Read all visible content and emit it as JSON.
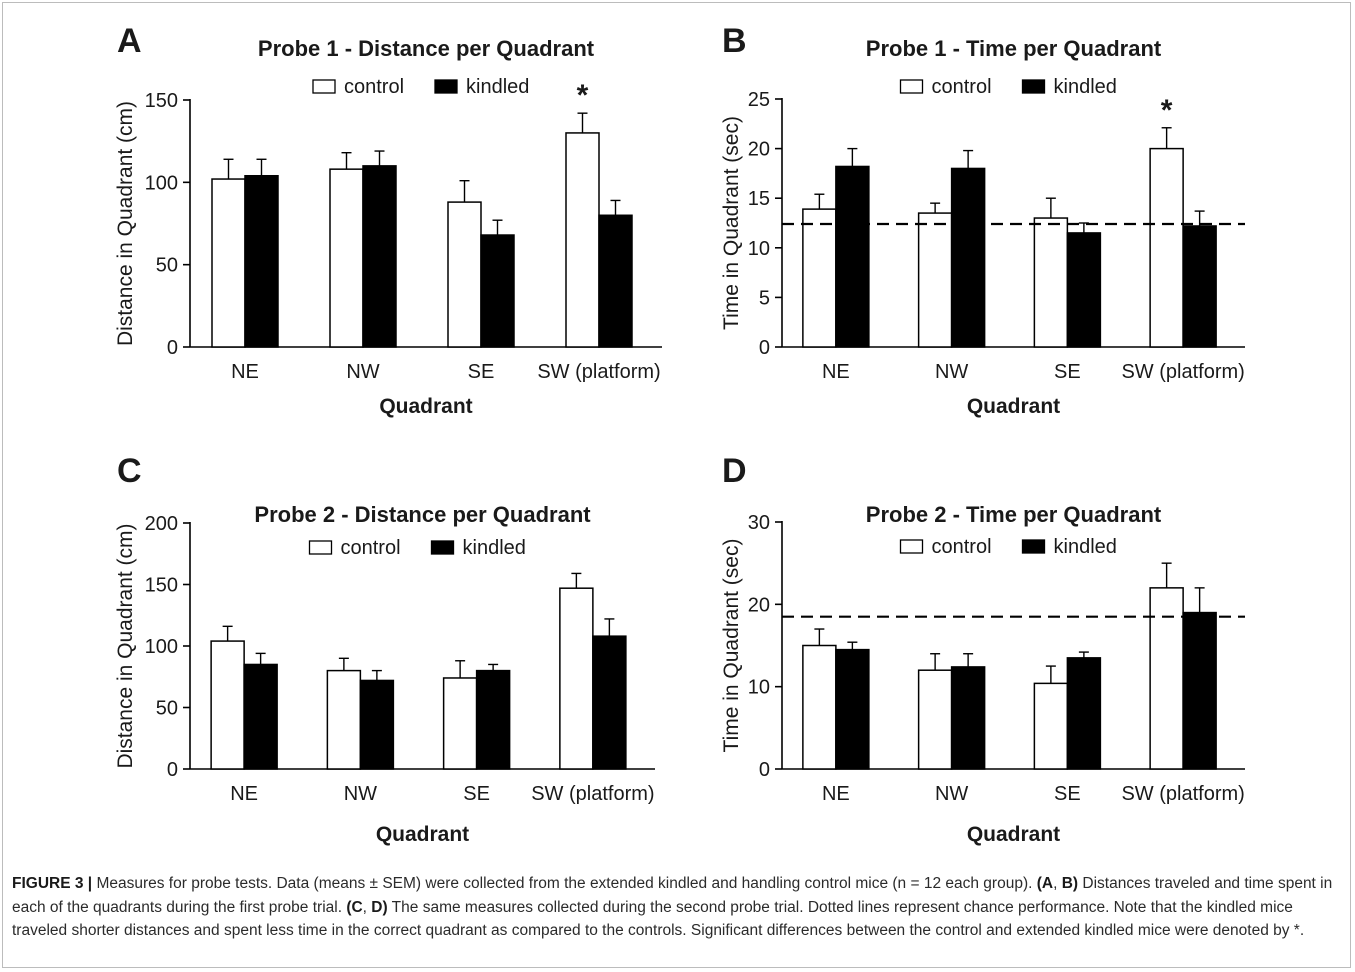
{
  "caption": {
    "label": "FIGURE 3",
    "sep": " | ",
    "line1_text": "Measures for probe tests. Data (means ± SEM) were collected from the extended kindled and handling control mice (n = 12 each group). ",
    "ref_ab_open": "(A",
    "ref_comma1": ", ",
    "ref_ab_close": "B)",
    "line2_text": " Distances traveled and time spent in each of the quadrants during the first probe trial. ",
    "ref_cd_open": "(C",
    "ref_comma2": ", ",
    "ref_cd_close": "D)",
    "line3_text": " The same measures collected during the second probe trial. Dotted lines represent chance performance. Note that the kindled mice traveled shorter distances and spent less time in the correct quadrant as compared to the controls. Significant differences between the control and extended kindled mice were denoted by *."
  },
  "chart_data": [
    {
      "panel": "A",
      "type": "bar",
      "title": "Probe 1 - Distance per Quadrant",
      "xlabel": "Quadrant",
      "ylabel": "Distance in Quadrant (cm)",
      "categories": [
        "NE",
        "NW",
        "SE",
        "SW (platform)"
      ],
      "ylim": [
        0,
        150
      ],
      "yticks": [
        0,
        50,
        100,
        150
      ],
      "legend_position": "top-center",
      "series": [
        {
          "name": "control",
          "fill": "#ffffff",
          "values": [
            102,
            108,
            88,
            130
          ],
          "errors": [
            12,
            10,
            13,
            12
          ]
        },
        {
          "name": "kindled",
          "fill": "#000000",
          "values": [
            104,
            110,
            68,
            80
          ],
          "errors": [
            10,
            9,
            9,
            9
          ]
        }
      ],
      "chance_line": null,
      "annotations": [
        {
          "category": "SW (platform)",
          "text": "*"
        }
      ]
    },
    {
      "panel": "B",
      "type": "bar",
      "title": "Probe 1 - Time per Quadrant",
      "xlabel": "Quadrant",
      "ylabel": "Time in Quadrant (sec)",
      "categories": [
        "NE",
        "NW",
        "SE",
        "SW (platform)"
      ],
      "ylim": [
        0,
        25
      ],
      "yticks": [
        0,
        5,
        10,
        15,
        20,
        25
      ],
      "legend_position": "top-center",
      "series": [
        {
          "name": "control",
          "fill": "#ffffff",
          "values": [
            13.9,
            13.5,
            13.0,
            20.0
          ],
          "errors": [
            1.5,
            1.0,
            2.0,
            2.1
          ]
        },
        {
          "name": "kindled",
          "fill": "#000000",
          "values": [
            18.2,
            18.0,
            11.5,
            12.2
          ],
          "errors": [
            1.8,
            1.8,
            1.0,
            1.5
          ]
        }
      ],
      "chance_line": 12.4,
      "annotations": [
        {
          "category": "SW (platform)",
          "text": "*"
        }
      ]
    },
    {
      "panel": "C",
      "type": "bar",
      "title": "Probe  2 - Distance per Quadrant",
      "xlabel": "Quadrant",
      "ylabel": "Distance in Quadrant (cm)",
      "categories": [
        "NE",
        "NW",
        "SE",
        "SW (platform)"
      ],
      "ylim": [
        0,
        200
      ],
      "yticks": [
        0,
        50,
        100,
        150,
        200
      ],
      "legend_position": "top-center",
      "series": [
        {
          "name": "control",
          "fill": "#ffffff",
          "values": [
            104,
            80,
            74,
            147
          ],
          "errors": [
            12,
            10,
            14,
            12
          ]
        },
        {
          "name": "kindled",
          "fill": "#000000",
          "values": [
            85,
            72,
            80,
            108
          ],
          "errors": [
            9,
            8,
            5,
            14
          ]
        }
      ],
      "chance_line": null,
      "annotations": []
    },
    {
      "panel": "D",
      "type": "bar",
      "title": "Probe 2 - Time per Quadrant",
      "xlabel": "Quadrant",
      "ylabel": "Time in Quadrant (sec)",
      "categories": [
        "NE",
        "NW",
        "SE",
        "SW (platform)"
      ],
      "ylim": [
        0,
        30
      ],
      "yticks": [
        0,
        10,
        20,
        30
      ],
      "legend_position": "top-center",
      "series": [
        {
          "name": "control",
          "fill": "#ffffff",
          "values": [
            15.0,
            12.0,
            10.4,
            22.0
          ],
          "errors": [
            2.0,
            2.0,
            2.1,
            3.0
          ]
        },
        {
          "name": "kindled",
          "fill": "#000000",
          "values": [
            14.5,
            12.4,
            13.5,
            19.0
          ],
          "errors": [
            0.9,
            1.6,
            0.7,
            3.0
          ]
        }
      ],
      "chance_line": 18.5,
      "annotations": []
    }
  ]
}
